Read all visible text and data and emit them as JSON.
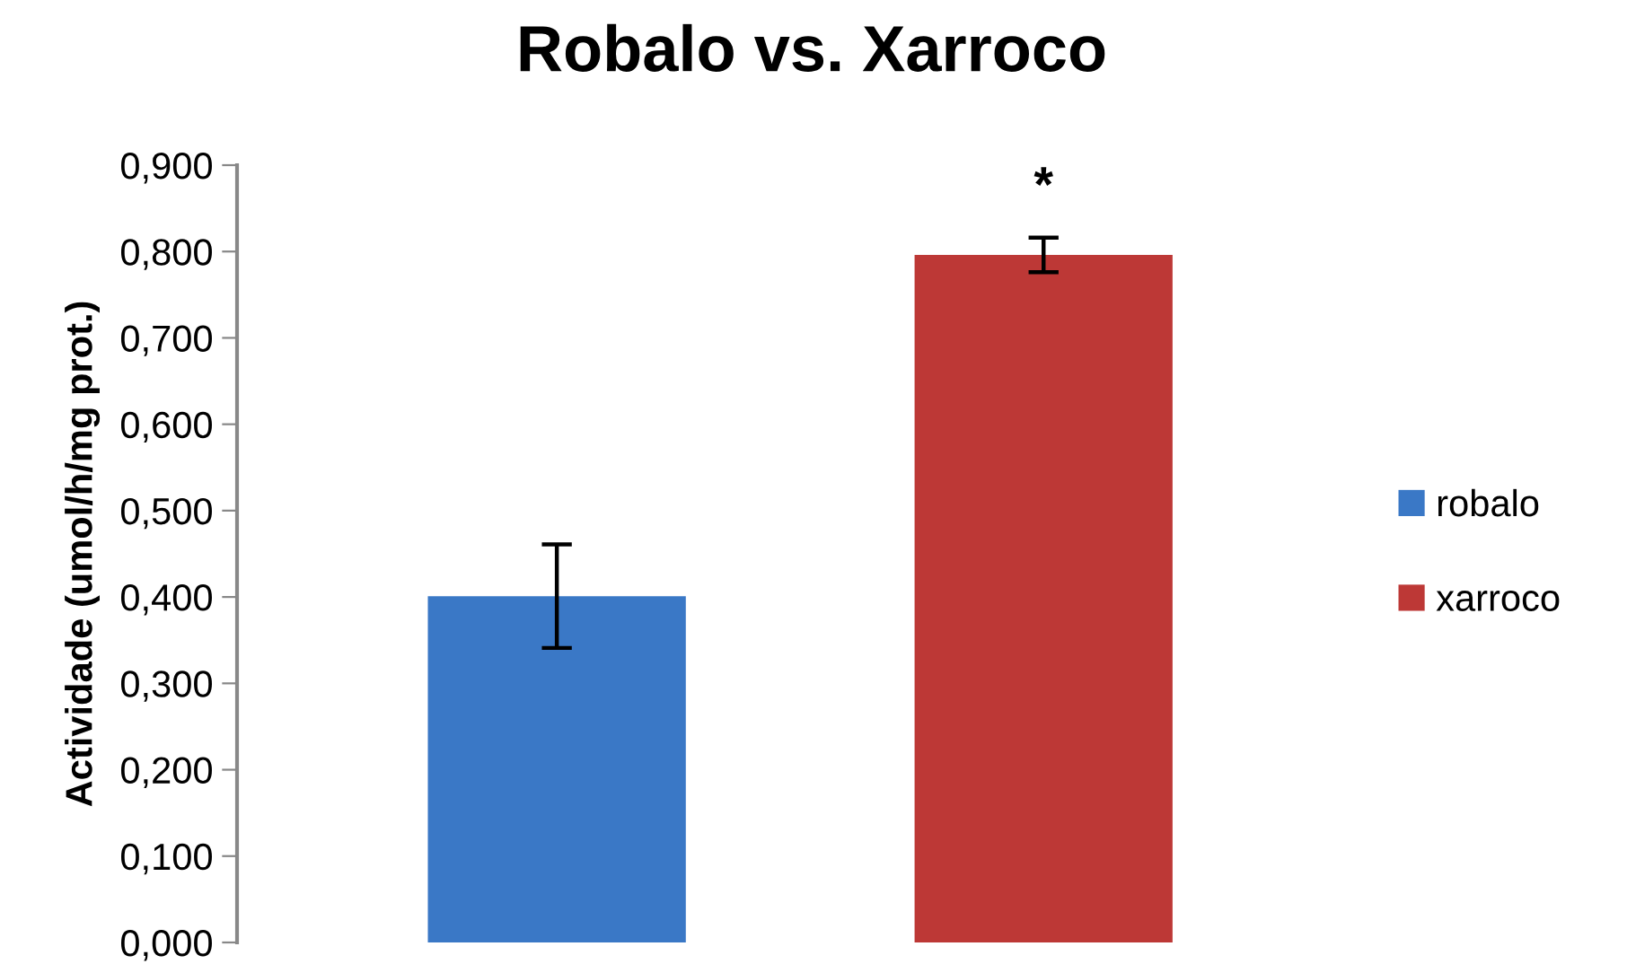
{
  "chart_data": {
    "type": "bar",
    "title": "Robalo vs. Xarroco",
    "ylabel": "Actividade (umol/h/mg prot.)",
    "categories": [
      null,
      null
    ],
    "stacked": true,
    "series": [
      {
        "name": "robalo",
        "color": "#3a78c6",
        "values": [
          0.401,
          null
        ],
        "errors": [
          0.06,
          null
        ]
      },
      {
        "name": "xarroco",
        "color": "#bd3836",
        "values": [
          null,
          0.796
        ],
        "errors": [
          null,
          0.02
        ]
      }
    ],
    "annotations": [
      "*"
    ],
    "ylim": [
      0,
      0.9
    ],
    "yticks": [
      {
        "value": 0,
        "label": "0,000"
      },
      {
        "value": 0.1,
        "label": "0,100"
      },
      {
        "value": 0.2,
        "label": "0,200"
      },
      {
        "value": 0.3,
        "label": "0,300"
      },
      {
        "value": 0.4,
        "label": "0,400"
      },
      {
        "value": 0.5,
        "label": "0,500"
      },
      {
        "value": 0.6,
        "label": "0,600"
      },
      {
        "value": 0.7,
        "label": "0,700"
      },
      {
        "value": 0.8,
        "label": "0,800"
      },
      {
        "value": 0.9,
        "label": "0,900"
      }
    ],
    "grid": false,
    "legend": "right",
    "tick_labels": "y"
  }
}
